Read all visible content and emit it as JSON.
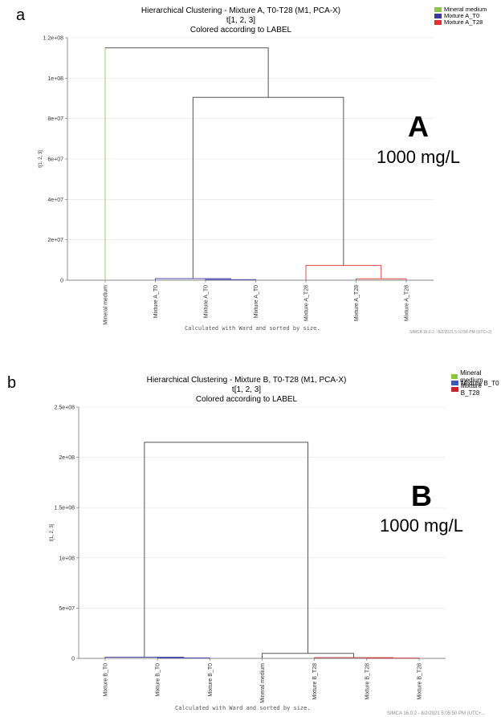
{
  "panels": [
    {
      "panel_letter": "a",
      "title_line1": "Hierarchical Clustering - Mixture A, T0-T28 (M1, PCA-X)",
      "title_line2": "t[1, 2, 3]",
      "title_line3": "Colored according to LABEL",
      "big_letter": "A",
      "concentration": "1000 mg/L",
      "footnote": "Calculated with Ward and sorted by size.",
      "stamp": "SIMCA 16.0.2 - 8/2/2021 5:10:56 PM (UTC+2)"
    },
    {
      "panel_letter": "b",
      "title_line1": "Hierarchical Clustering - Mixture B, T0-T28 (M1, PCA-X)",
      "title_line2": "t[1, 2, 3]",
      "title_line3": "Colored according to LABEL",
      "big_letter": "B",
      "concentration": "1000 mg/L",
      "footnote": "Calculated with Ward and sorted by size.",
      "stamp": "SIMCA 16.0.2 - 8/2/2021 5:05:50 PM (UTC+..."
    }
  ],
  "chart_data": [
    {
      "type": "dendrogram",
      "ylabel": "t[1, 2, 3]",
      "ylim": [
        0,
        120000000
      ],
      "y_ticks": [
        0,
        20000000,
        40000000,
        60000000,
        80000000,
        100000000,
        120000000
      ],
      "y_tick_labels": [
        "0",
        "2e+07",
        "4e+07",
        "6e+07",
        "8e+07",
        "1e+08",
        "1.2e+08"
      ],
      "grid": true,
      "legend_position": "top-right",
      "legend": [
        {
          "name": "Mineral medium",
          "color": "#8cc63f"
        },
        {
          "name": "Mixture A_T0",
          "color": "#3a3a9e"
        },
        {
          "name": "Mixture A_T28",
          "color": "#e0302f"
        }
      ],
      "leaves": [
        {
          "label": "Mineral medium",
          "color": "#9acd6a"
        },
        {
          "label": "Mixture A_T0",
          "color": "#4b4bb0"
        },
        {
          "label": "Mixture A_T0",
          "color": "#4b4bb0"
        },
        {
          "label": "Mixture A_T0",
          "color": "#4b4bb0"
        },
        {
          "label": "Mixture A_T28",
          "color": "#e04848"
        },
        {
          "label": "Mixture A_T28",
          "color": "#e04848"
        },
        {
          "label": "Mixture A_T28",
          "color": "#e04848"
        }
      ],
      "merges": [
        {
          "left": 2,
          "right": 3,
          "height": 300000,
          "color": "#4b4bb0"
        },
        {
          "left": 1,
          "right": 7,
          "height": 800000,
          "color": "#4b4bb0"
        },
        {
          "left": 5,
          "right": 6,
          "height": 700000,
          "color": "#e04848"
        },
        {
          "left": 4,
          "right": 9,
          "height": 7300000,
          "color": "#e04848"
        },
        {
          "left": 8,
          "right": 10,
          "height": 90500000,
          "color": "#555555"
        },
        {
          "left": 0,
          "right": 11,
          "height": 115000000,
          "color": "#555555"
        }
      ]
    },
    {
      "type": "dendrogram",
      "ylabel": "t[1, 2, 3]",
      "ylim": [
        0,
        250000000
      ],
      "y_ticks": [
        0,
        50000000,
        100000000,
        150000000,
        200000000,
        250000000
      ],
      "y_tick_labels": [
        "0",
        "5e+07",
        "1e+08",
        "1.5e+08",
        "2e+08",
        "2.5e+08"
      ],
      "grid": true,
      "legend_position": "top-right",
      "legend": [
        {
          "name": "Mineral medium",
          "color": "#8cc63f"
        },
        {
          "name": "Mixture B_T0",
          "color": "#3a5bb0"
        },
        {
          "name": "Mixture B_T28",
          "color": "#c0282d"
        }
      ],
      "leaves": [
        {
          "label": "Mixture B_T0",
          "color": "#4b4bb0"
        },
        {
          "label": "Mixture B_T0",
          "color": "#4b4bb0"
        },
        {
          "label": "Mixture B_T0",
          "color": "#4b4bb0"
        },
        {
          "label": "Mineral medium",
          "color": "#9acd6a"
        },
        {
          "label": "Mixture B_T28",
          "color": "#c83a3a"
        },
        {
          "label": "Mixture B_T28",
          "color": "#c83a3a"
        },
        {
          "label": "Mixture B_T28",
          "color": "#c83a3a"
        }
      ],
      "merges": [
        {
          "left": 1,
          "right": 2,
          "height": 500000,
          "color": "#4b4bb0"
        },
        {
          "left": 0,
          "right": 7,
          "height": 1200000,
          "color": "#4b4bb0"
        },
        {
          "left": 5,
          "right": 6,
          "height": 300000,
          "color": "#c83a3a"
        },
        {
          "left": 4,
          "right": 9,
          "height": 700000,
          "color": "#c83a3a"
        },
        {
          "left": 3,
          "right": 10,
          "height": 5000000,
          "color": "#555555"
        },
        {
          "left": 8,
          "right": 11,
          "height": 215000000,
          "color": "#555555"
        }
      ]
    }
  ]
}
